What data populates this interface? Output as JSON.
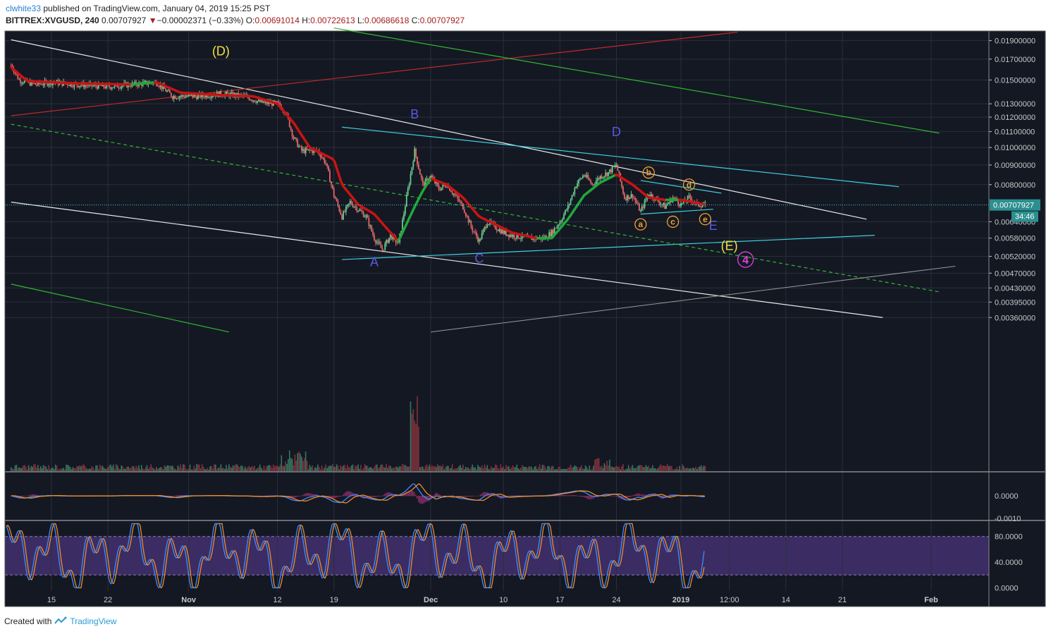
{
  "header": {
    "user": "clwhite33",
    "published_text": "published on TradingView.com, January 04, 2019 15:25 PST",
    "symbol": "BITTREX:XVGUSD, 240",
    "price": "0.00707927",
    "change_arrow": "▼",
    "change": "−0.00002371 (−0.33%)",
    "o_label": "O:",
    "o_value": "0.00691014",
    "h_label": "H:",
    "h_value": "0.00722613",
    "l_label": "L:",
    "l_value": "0.00686618",
    "c_label": "C:",
    "c_value": "0.00707927"
  },
  "footer": {
    "created_with": "Created with",
    "brand": "TradingView"
  },
  "colors": {
    "background": "#141823",
    "grid": "#2a2f3b",
    "axis_text": "#c8c8c8",
    "up_candle": "#6bc98d",
    "down_candle": "#e06666",
    "ema_red": "#c81414",
    "ema_green": "#21a83a",
    "trend_white": "#e8e8e8",
    "trend_cyan": "#40d0e0",
    "trend_green": "#2fb82f",
    "trend_red": "#c02a2a",
    "label_blue": "#5a5ae0",
    "label_yellow": "#f0e040",
    "label_orange": "#f0a030",
    "label_magenta": "#e040e0",
    "price_tag": "#2c8f8f",
    "stoch_band": "#3b2d63"
  },
  "chart_data": {
    "type": "candlestick",
    "symbol": "BITTREX:XVGUSD",
    "interval": "240",
    "y_scale": "log",
    "ylim": [
      0.0033,
      0.0198
    ],
    "x_tick_labels": [
      "15",
      "22",
      "Nov",
      "12",
      "19",
      "Dec",
      "10",
      "17",
      "24",
      "2019",
      "12:00",
      "14",
      "21",
      "Feb"
    ],
    "y_tick_labels": [
      "0.01900000",
      "0.01700000",
      "0.01500000",
      "0.01300000",
      "0.01200000",
      "0.01100000",
      "0.01000000",
      "0.00900000",
      "0.00800000",
      "0.00640000",
      "0.00580000",
      "0.00520000",
      "0.00470000",
      "0.00430000",
      "0.00395000",
      "0.00360000"
    ],
    "y_ticks": [
      0.019,
      0.017,
      0.015,
      0.013,
      0.012,
      0.011,
      0.01,
      0.009,
      0.008,
      0.0064,
      0.0058,
      0.0052,
      0.0047,
      0.0043,
      0.00395,
      0.0036
    ],
    "last_price_label": "0.00707927",
    "last_price": 0.00707927,
    "countdown_label": "34:46",
    "price_path": [
      [
        "2018-10-10",
        0.0164
      ],
      [
        "2018-10-11",
        0.015
      ],
      [
        "2018-10-13",
        0.0146
      ],
      [
        "2018-10-15",
        0.0148
      ],
      [
        "2018-10-18",
        0.0146
      ],
      [
        "2018-10-22",
        0.0144
      ],
      [
        "2018-10-25",
        0.0146
      ],
      [
        "2018-10-28",
        0.0148
      ],
      [
        "2018-10-30",
        0.0136
      ],
      [
        "2018-11-02",
        0.0136
      ],
      [
        "2018-11-05",
        0.0138
      ],
      [
        "2018-11-08",
        0.0136
      ],
      [
        "2018-11-10",
        0.0131
      ],
      [
        "2018-11-12",
        0.013
      ],
      [
        "2018-11-13",
        0.0124
      ],
      [
        "2018-11-14",
        0.0106
      ],
      [
        "2018-11-15",
        0.0098
      ],
      [
        "2018-11-17",
        0.0098
      ],
      [
        "2018-11-18",
        0.0091
      ],
      [
        "2018-11-19",
        0.0075
      ],
      [
        "2018-11-20",
        0.0066
      ],
      [
        "2018-11-21",
        0.0072
      ],
      [
        "2018-11-23",
        0.0066
      ],
      [
        "2018-11-24",
        0.0058
      ],
      [
        "2018-11-25",
        0.0054
      ],
      [
        "2018-11-26",
        0.0059
      ],
      [
        "2018-11-27",
        0.0056
      ],
      [
        "2018-11-28",
        0.0074
      ],
      [
        "2018-11-29",
        0.0098
      ],
      [
        "2018-11-30",
        0.008
      ],
      [
        "2018-12-01",
        0.0084
      ],
      [
        "2018-12-02",
        0.0078
      ],
      [
        "2018-12-03",
        0.008
      ],
      [
        "2018-12-05",
        0.007
      ],
      [
        "2018-12-06",
        0.0062
      ],
      [
        "2018-12-07",
        0.0057
      ],
      [
        "2018-12-08",
        0.0064
      ],
      [
        "2018-12-09",
        0.0062
      ],
      [
        "2018-12-10",
        0.006
      ],
      [
        "2018-12-11",
        0.0059
      ],
      [
        "2018-12-13",
        0.0058
      ],
      [
        "2018-12-15",
        0.0058
      ],
      [
        "2018-12-16",
        0.006
      ],
      [
        "2018-12-17",
        0.0064
      ],
      [
        "2018-12-18",
        0.007
      ],
      [
        "2018-12-19",
        0.008
      ],
      [
        "2018-12-20",
        0.0085
      ],
      [
        "2018-12-21",
        0.008
      ],
      [
        "2018-12-22",
        0.0084
      ],
      [
        "2018-12-23",
        0.0086
      ],
      [
        "2018-12-24",
        0.009
      ],
      [
        "2018-12-25",
        0.0074
      ],
      [
        "2018-12-26",
        0.0075
      ],
      [
        "2018-12-27",
        0.0068
      ],
      [
        "2018-12-28",
        0.0076
      ],
      [
        "2018-12-29",
        0.0073
      ],
      [
        "2018-12-30",
        0.007
      ],
      [
        "2018-12-31",
        0.0074
      ],
      [
        "2019-01-01",
        0.0071
      ],
      [
        "2019-01-02",
        0.0074
      ],
      [
        "2019-01-03",
        0.0071
      ],
      [
        "2019-01-04",
        0.00707927
      ]
    ],
    "ema_path": [
      [
        "2018-10-10",
        0.0162
      ],
      [
        "2018-10-12",
        0.0149
      ],
      [
        "2018-10-18",
        0.0147
      ],
      [
        "2018-10-25",
        0.0146
      ],
      [
        "2018-10-28",
        0.0148
      ],
      [
        "2018-10-31",
        0.0139
      ],
      [
        "2018-11-05",
        0.0137
      ],
      [
        "2018-11-09",
        0.0136
      ],
      [
        "2018-11-12",
        0.013
      ],
      [
        "2018-11-14",
        0.0116
      ],
      [
        "2018-11-16",
        0.01
      ],
      [
        "2018-11-19",
        0.0093
      ],
      [
        "2018-11-20",
        0.008
      ],
      [
        "2018-11-22",
        0.0071
      ],
      [
        "2018-11-24",
        0.0067
      ],
      [
        "2018-11-26",
        0.006
      ],
      [
        "2018-11-27",
        0.0057
      ],
      [
        "2018-11-29",
        0.007
      ],
      [
        "2018-11-30",
        0.0077
      ],
      [
        "2018-12-01",
        0.0083
      ],
      [
        "2018-12-03",
        0.008
      ],
      [
        "2018-12-05",
        0.0074
      ],
      [
        "2018-12-07",
        0.0066
      ],
      [
        "2018-12-09",
        0.0063
      ],
      [
        "2018-12-11",
        0.006
      ],
      [
        "2018-12-14",
        0.0058
      ],
      [
        "2018-12-16",
        0.0058
      ],
      [
        "2018-12-18",
        0.0065
      ],
      [
        "2018-12-20",
        0.0075
      ],
      [
        "2018-12-22",
        0.0081
      ],
      [
        "2018-12-24",
        0.0085
      ],
      [
        "2018-12-26",
        0.008
      ],
      [
        "2018-12-28",
        0.0074
      ],
      [
        "2018-12-30",
        0.0073
      ],
      [
        "2019-01-01",
        0.0073
      ],
      [
        "2019-01-04",
        0.0071
      ]
    ],
    "wave_labels": [
      {
        "text": "(D)",
        "date": "2018-11-05",
        "price": 0.0174,
        "color": "yellow"
      },
      {
        "text": "B",
        "date": "2018-11-29",
        "price": 0.0119,
        "color": "blue"
      },
      {
        "text": "D",
        "date": "2018-12-24",
        "price": 0.0107,
        "color": "blue"
      },
      {
        "text": "A",
        "date": "2018-11-24",
        "price": 0.0049,
        "color": "blue"
      },
      {
        "text": "C",
        "date": "2018-12-07",
        "price": 0.005,
        "color": "blue"
      },
      {
        "text": "E",
        "date": "2019-01-05",
        "price": 0.0061,
        "color": "blue"
      },
      {
        "text": "(E)",
        "date": "2019-01-07",
        "price": 0.0054,
        "color": "yellow"
      },
      {
        "text": "4",
        "date": "2019-01-09",
        "price": 0.0051,
        "color": "magenta",
        "circled": true
      },
      {
        "text": "a",
        "date": "2018-12-27",
        "price": 0.0063,
        "color": "orange",
        "circled": true
      },
      {
        "text": "b",
        "date": "2018-12-28",
        "price": 0.0086,
        "color": "orange",
        "circled": true
      },
      {
        "text": "c",
        "date": "2018-12-31",
        "price": 0.0064,
        "color": "orange",
        "circled": true
      },
      {
        "text": "d",
        "date": "2019-01-02",
        "price": 0.008,
        "color": "orange",
        "circled": true
      },
      {
        "text": "e",
        "date": "2019-01-04",
        "price": 0.0065,
        "color": "orange",
        "circled": true
      }
    ],
    "macd_panel": {
      "y_tick_labels": [
        "0.0000",
        "-0.0010"
      ],
      "ylim": [
        -0.0012,
        0.0012
      ]
    },
    "stoch_panel": {
      "y_tick_labels": [
        "80.0000",
        "40.0000",
        "0.0000"
      ],
      "ylim": [
        -5,
        105
      ],
      "upper_band": 80,
      "lower_band": 20
    }
  }
}
